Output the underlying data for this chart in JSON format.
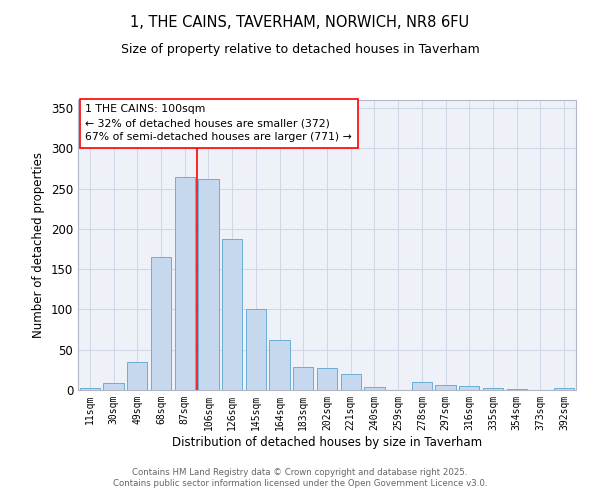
{
  "title_line1": "1, THE CAINS, TAVERHAM, NORWICH, NR8 6FU",
  "title_line2": "Size of property relative to detached houses in Taverham",
  "xlabel": "Distribution of detached houses by size in Taverham",
  "ylabel": "Number of detached properties",
  "categories": [
    "11sqm",
    "30sqm",
    "49sqm",
    "68sqm",
    "87sqm",
    "106sqm",
    "126sqm",
    "145sqm",
    "164sqm",
    "183sqm",
    "202sqm",
    "221sqm",
    "240sqm",
    "259sqm",
    "278sqm",
    "297sqm",
    "316sqm",
    "335sqm",
    "354sqm",
    "373sqm",
    "392sqm"
  ],
  "values": [
    2,
    9,
    35,
    165,
    265,
    262,
    188,
    100,
    62,
    28,
    27,
    20,
    4,
    0,
    10,
    6,
    5,
    2,
    1,
    0,
    3
  ],
  "bar_color": "#c5d8ed",
  "bar_edge_color": "#6aaed6",
  "grid_color": "#d0d8e8",
  "bg_color": "#eef2f8",
  "annotation_text": "1 THE CAINS: 100sqm\n← 32% of detached houses are smaller (372)\n67% of semi-detached houses are larger (771) →",
  "vline_x_index": 4.5,
  "footer_text": "Contains HM Land Registry data © Crown copyright and database right 2025.\nContains public sector information licensed under the Open Government Licence v3.0.",
  "ylim": [
    0,
    360
  ],
  "yticks": [
    0,
    50,
    100,
    150,
    200,
    250,
    300,
    350
  ]
}
